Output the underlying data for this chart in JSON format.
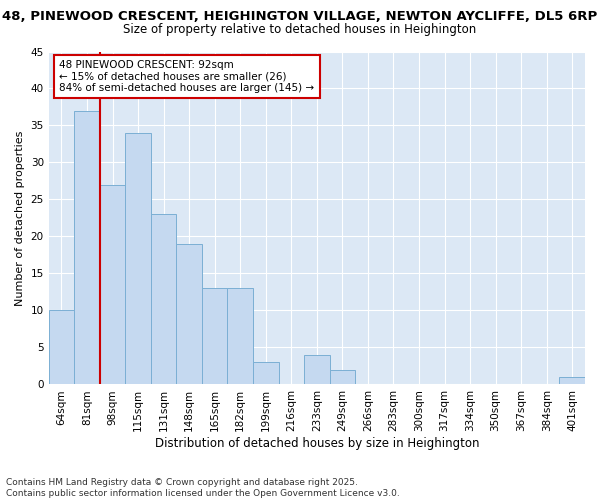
{
  "title_line1": "48, PINEWOOD CRESCENT, HEIGHINGTON VILLAGE, NEWTON AYCLIFFE, DL5 6RP",
  "title_line2": "Size of property relative to detached houses in Heighington",
  "xlabel": "Distribution of detached houses by size in Heighington",
  "ylabel": "Number of detached properties",
  "categories": [
    "64sqm",
    "81sqm",
    "98sqm",
    "115sqm",
    "131sqm",
    "148sqm",
    "165sqm",
    "182sqm",
    "199sqm",
    "216sqm",
    "233sqm",
    "249sqm",
    "266sqm",
    "283sqm",
    "300sqm",
    "317sqm",
    "334sqm",
    "350sqm",
    "367sqm",
    "384sqm",
    "401sqm"
  ],
  "values": [
    10,
    37,
    27,
    34,
    23,
    19,
    13,
    13,
    3,
    0,
    4,
    2,
    0,
    0,
    0,
    0,
    0,
    0,
    0,
    0,
    1
  ],
  "bar_color": "#c5d9f0",
  "bar_edge_color": "#7bafd4",
  "ylim": [
    0,
    45
  ],
  "yticks": [
    0,
    5,
    10,
    15,
    20,
    25,
    30,
    35,
    40,
    45
  ],
  "property_line_index": 1,
  "property_line_color": "#cc0000",
  "annotation_title": "48 PINEWOOD CRESCENT: 92sqm",
  "annotation_line1": "← 15% of detached houses are smaller (26)",
  "annotation_line2": "84% of semi-detached houses are larger (145) →",
  "annotation_box_color": "#cc0000",
  "footnote_line1": "Contains HM Land Registry data © Crown copyright and database right 2025.",
  "footnote_line2": "Contains public sector information licensed under the Open Government Licence v3.0.",
  "fig_background_color": "#ffffff",
  "axes_background_color": "#dce8f5",
  "grid_color": "#ffffff",
  "title1_fontsize": 9.5,
  "title2_fontsize": 8.5,
  "ylabel_fontsize": 8,
  "xlabel_fontsize": 8.5,
  "tick_fontsize": 7.5,
  "annot_fontsize": 7.5,
  "footnote_fontsize": 6.5
}
